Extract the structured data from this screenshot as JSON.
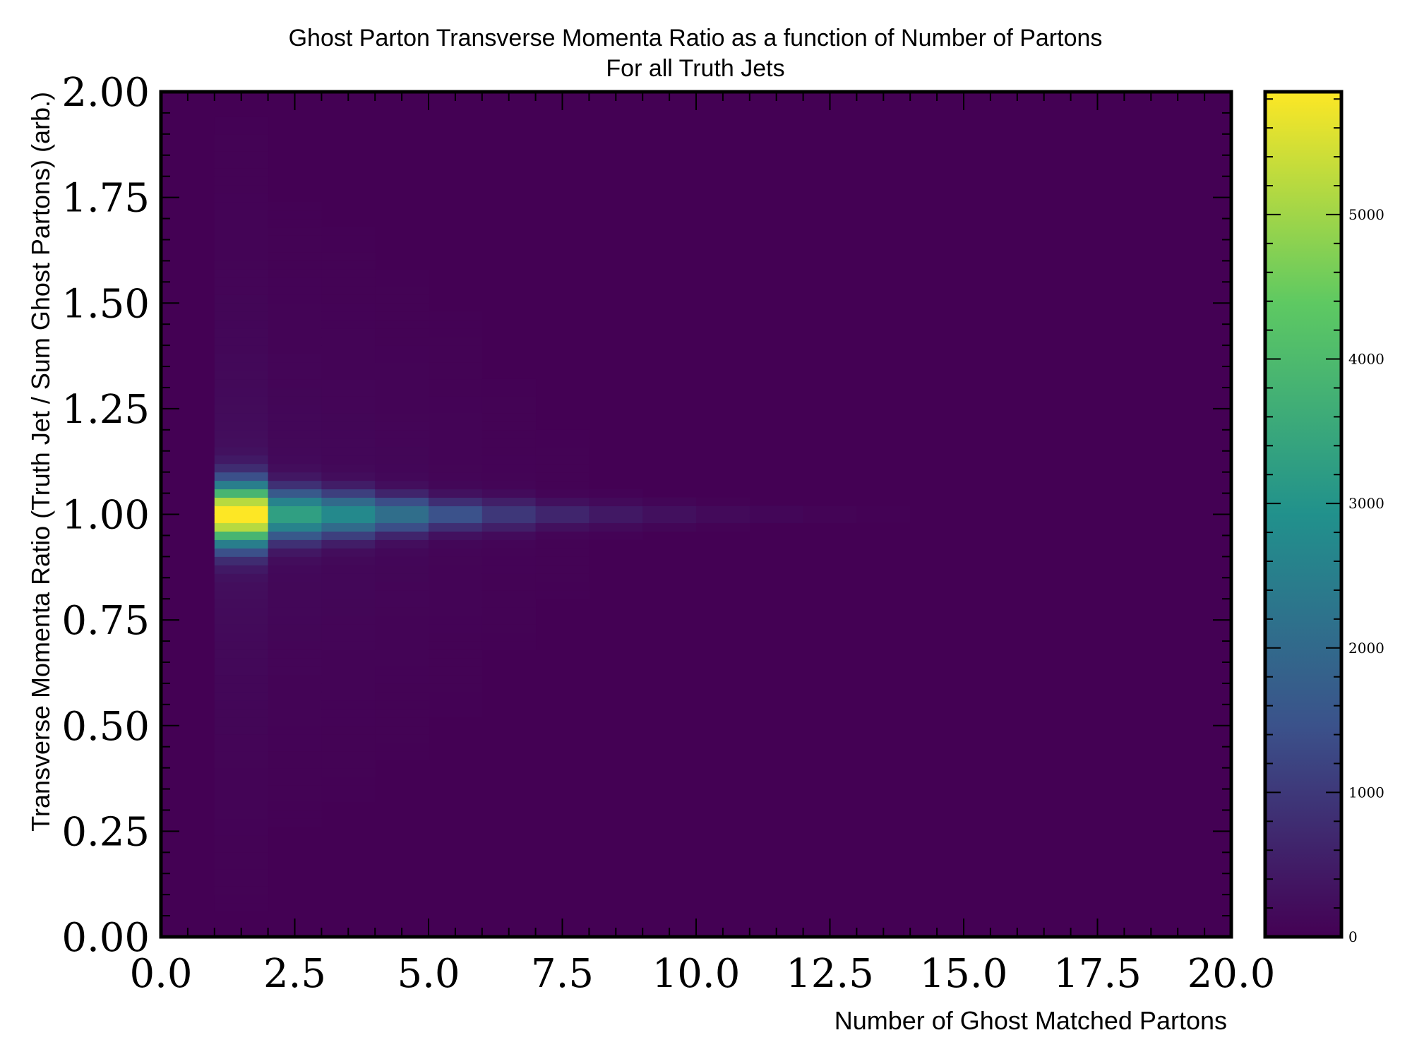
{
  "chart_data": {
    "type": "heatmap",
    "title": "Ghost Parton Transverse Momenta Ratio as a function of Number of Partons",
    "subtitle": "For all Truth Jets",
    "xlabel": "Number of Ghost Matched Partons",
    "ylabel": "Transverse Momenta Ratio (Truth Jet / Sum Ghost Partons) (arb.)",
    "xlim": [
      0,
      20
    ],
    "ylim": [
      0,
      2
    ],
    "x_ticks": [
      "0.0",
      "2.5",
      "5.0",
      "7.5",
      "10.0",
      "12.5",
      "15.0",
      "17.5",
      "20.0"
    ],
    "y_ticks": [
      "0.00",
      "0.25",
      "0.50",
      "0.75",
      "1.00",
      "1.25",
      "1.50",
      "1.75",
      "2.00"
    ],
    "colorbar": {
      "colormap": "viridis",
      "range": [
        0,
        5850
      ],
      "ticks": [
        "0",
        "1000",
        "2000",
        "3000",
        "4000",
        "5000"
      ]
    },
    "x_bin_width": 1,
    "y_bin_width": 0.02,
    "series": [
      {
        "x_bin": [
          1,
          2
        ],
        "peak_y": 1.0,
        "peak_count": 5850,
        "width": 0.1
      },
      {
        "x_bin": [
          2,
          3
        ],
        "peak_y": 1.0,
        "peak_count": 3200,
        "width": 0.08
      },
      {
        "x_bin": [
          3,
          4
        ],
        "peak_y": 1.0,
        "peak_count": 2700,
        "width": 0.07
      },
      {
        "x_bin": [
          4,
          5
        ],
        "peak_y": 1.0,
        "peak_count": 2100,
        "width": 0.06
      },
      {
        "x_bin": [
          5,
          6
        ],
        "peak_y": 1.0,
        "peak_count": 1500,
        "width": 0.05
      },
      {
        "x_bin": [
          6,
          7
        ],
        "peak_y": 1.0,
        "peak_count": 1000,
        "width": 0.05
      },
      {
        "x_bin": [
          7,
          8
        ],
        "peak_y": 1.0,
        "peak_count": 700,
        "width": 0.04
      },
      {
        "x_bin": [
          8,
          9
        ],
        "peak_y": 1.0,
        "peak_count": 450,
        "width": 0.04
      },
      {
        "x_bin": [
          9,
          10
        ],
        "peak_y": 1.0,
        "peak_count": 300,
        "width": 0.035
      },
      {
        "x_bin": [
          10,
          11
        ],
        "peak_y": 1.0,
        "peak_count": 180,
        "width": 0.03
      },
      {
        "x_bin": [
          11,
          12
        ],
        "peak_y": 1.0,
        "peak_count": 110,
        "width": 0.03
      },
      {
        "x_bin": [
          12,
          13
        ],
        "peak_y": 1.0,
        "peak_count": 60,
        "width": 0.03
      },
      {
        "x_bin": [
          13,
          14
        ],
        "peak_y": 1.0,
        "peak_count": 30,
        "width": 0.03
      }
    ]
  }
}
